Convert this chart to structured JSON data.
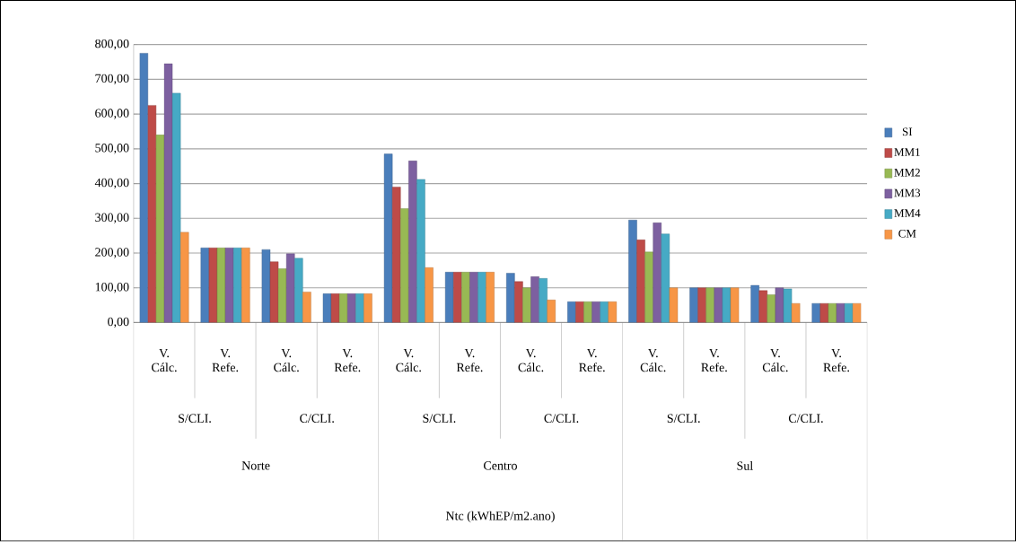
{
  "chart_data": {
    "type": "bar",
    "categories": [
      "V. Cálc.",
      "V. Refe.",
      "V. Cálc.",
      "V. Refe.",
      "V. Cálc.",
      "V. Refe.",
      "V. Cálc.",
      "V. Refe.",
      "V. Cálc.",
      "V. Refe.",
      "V. Cálc.",
      "V. Refe."
    ],
    "series": [
      {
        "name": "SI",
        "color": "#4a7ebb",
        "values": [
          775,
          215,
          210,
          83,
          485,
          145,
          142,
          60,
          295,
          100,
          107,
          55
        ]
      },
      {
        "name": "MM1",
        "color": "#be4b48",
        "values": [
          625,
          215,
          175,
          83,
          390,
          145,
          118,
          60,
          238,
          100,
          92,
          55
        ]
      },
      {
        "name": "MM2",
        "color": "#98b954",
        "values": [
          540,
          215,
          155,
          83,
          328,
          145,
          100,
          60,
          203,
          100,
          80,
          55
        ]
      },
      {
        "name": "MM3",
        "color": "#7d60a0",
        "values": [
          745,
          215,
          198,
          83,
          465,
          145,
          132,
          60,
          287,
          100,
          100,
          55
        ]
      },
      {
        "name": "MM4",
        "color": "#46aac5",
        "values": [
          660,
          215,
          185,
          83,
          412,
          145,
          127,
          60,
          255,
          100,
          97,
          55
        ]
      },
      {
        "name": "CM",
        "color": "#f79646",
        "values": [
          260,
          215,
          88,
          83,
          158,
          145,
          65,
          60,
          100,
          100,
          55,
          55
        ]
      }
    ],
    "ylim": [
      0,
      800
    ],
    "yticks": [
      {
        "value": 0,
        "label": "0,00"
      },
      {
        "value": 100,
        "label": "100,00"
      },
      {
        "value": 200,
        "label": "200,00"
      },
      {
        "value": 300,
        "label": "300,00"
      },
      {
        "value": 400,
        "label": "400,00"
      },
      {
        "value": 500,
        "label": "500,00"
      },
      {
        "value": 600,
        "label": "600,00"
      },
      {
        "value": 700,
        "label": "700,00"
      },
      {
        "value": 800,
        "label": "800,00"
      }
    ],
    "annotations": [
      "S/CLI.",
      "C/CLI.",
      "S/CLI.",
      "C/CLI.",
      "S/CLI.",
      "C/CLI.",
      "Norte",
      "Centro",
      "Sul",
      "Ntc (kWhEP/m2.ano)"
    ],
    "grid": "y",
    "legend": "right"
  }
}
